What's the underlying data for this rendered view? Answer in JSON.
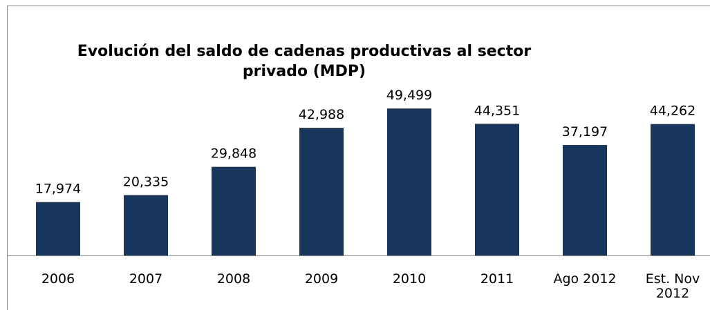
{
  "chart_data": {
    "type": "bar",
    "title": "Evolución del saldo de cadenas productivas al sector privado (MDP)",
    "categories": [
      "2006",
      "2007",
      "2008",
      "2009",
      "2010",
      "2011",
      "Ago 2012",
      "Est. Nov 2012"
    ],
    "values": [
      17974,
      20335,
      29848,
      42988,
      49499,
      44351,
      37197,
      44262
    ],
    "value_labels": [
      "17,974",
      "20,335",
      "29,848",
      "42,988",
      "49,499",
      "44,351",
      "37,197",
      "44,262"
    ],
    "color": "#17375e",
    "ylim": [
      0,
      60000
    ]
  }
}
